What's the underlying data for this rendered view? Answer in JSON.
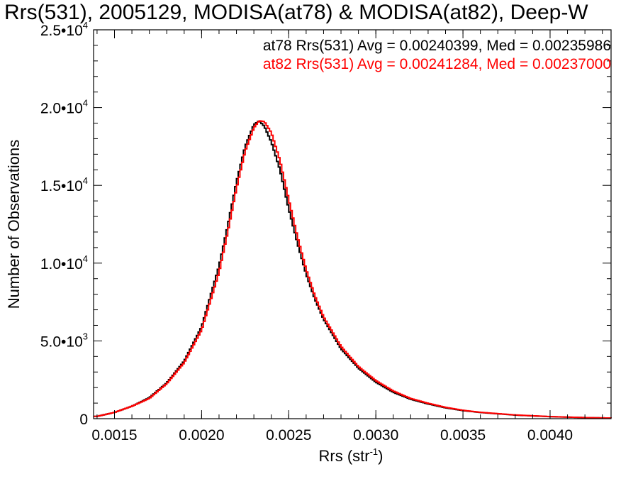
{
  "chart_data": {
    "type": "line",
    "title": "Rrs(531), 2005129, MODISA(at78) & MODISA(at82), Deep-W",
    "xlabel_main": "Rrs (str",
    "xlabel_exp": "-1",
    "xlabel_close": ")",
    "ylabel": "Number of Observations",
    "xlim": [
      0.00138,
      0.00435
    ],
    "ylim": [
      0,
      25000
    ],
    "x_ticks": [
      {
        "value": 0.0015,
        "label": "0.0015"
      },
      {
        "value": 0.002,
        "label": "0.0020"
      },
      {
        "value": 0.0025,
        "label": "0.0025"
      },
      {
        "value": 0.003,
        "label": "0.0030"
      },
      {
        "value": 0.0035,
        "label": "0.0035"
      },
      {
        "value": 0.004,
        "label": "0.0040"
      }
    ],
    "y_ticks": [
      {
        "value": 0,
        "mantissa": "0",
        "exp": ""
      },
      {
        "value": 5000,
        "mantissa": "5.0•10",
        "exp": "3"
      },
      {
        "value": 10000,
        "mantissa": "1.0•10",
        "exp": "4"
      },
      {
        "value": 15000,
        "mantissa": "1.5•10",
        "exp": "4"
      },
      {
        "value": 20000,
        "mantissa": "2.0•10",
        "exp": "4"
      },
      {
        "value": 25000,
        "mantissa": "2.5•10",
        "exp": "4"
      }
    ],
    "annotations": [
      {
        "text": "at78 Rrs(531) Avg = 0.00240399, Med = 0.00235986",
        "color": "#000000"
      },
      {
        "text": "at82 Rrs(531) Avg = 0.00241284, Med = 0.00237000",
        "color": "#ff0000"
      }
    ],
    "series": [
      {
        "color": "#000000",
        "x": [
          0.0014,
          0.0015,
          0.0016,
          0.0017,
          0.0018,
          0.0019,
          0.002,
          0.0021,
          0.00215,
          0.0022,
          0.00225,
          0.0023,
          0.00233,
          0.00236,
          0.0024,
          0.00245,
          0.0025,
          0.00255,
          0.0026,
          0.00265,
          0.0027,
          0.0028,
          0.0029,
          0.003,
          0.0031,
          0.0032,
          0.0033,
          0.0034,
          0.0035,
          0.0036,
          0.0038,
          0.004,
          0.0042,
          0.00435
        ],
        "y": [
          150,
          400,
          800,
          1350,
          2300,
          3700,
          5900,
          9800,
          12400,
          15200,
          17500,
          18900,
          19150,
          18800,
          17800,
          16000,
          13500,
          11300,
          9300,
          7700,
          6400,
          4500,
          3250,
          2350,
          1700,
          1250,
          950,
          700,
          520,
          400,
          230,
          130,
          70,
          40
        ]
      },
      {
        "color": "#ff0000",
        "x": [
          0.0014,
          0.0015,
          0.0016,
          0.0017,
          0.0018,
          0.0019,
          0.002,
          0.0021,
          0.00215,
          0.0022,
          0.00225,
          0.0023,
          0.00233,
          0.00236,
          0.0024,
          0.00245,
          0.0025,
          0.00255,
          0.0026,
          0.00265,
          0.0027,
          0.0028,
          0.0029,
          0.003,
          0.0031,
          0.0032,
          0.0033,
          0.0034,
          0.0035,
          0.0036,
          0.0038,
          0.004,
          0.0042,
          0.00435
        ],
        "y": [
          150,
          400,
          800,
          1300,
          2250,
          3600,
          5700,
          9400,
          12000,
          14800,
          17200,
          18700,
          19150,
          19100,
          18400,
          16600,
          14100,
          11700,
          9600,
          7900,
          6550,
          4650,
          3350,
          2450,
          1780,
          1300,
          990,
          730,
          540,
          410,
          240,
          135,
          70,
          40
        ]
      }
    ]
  }
}
